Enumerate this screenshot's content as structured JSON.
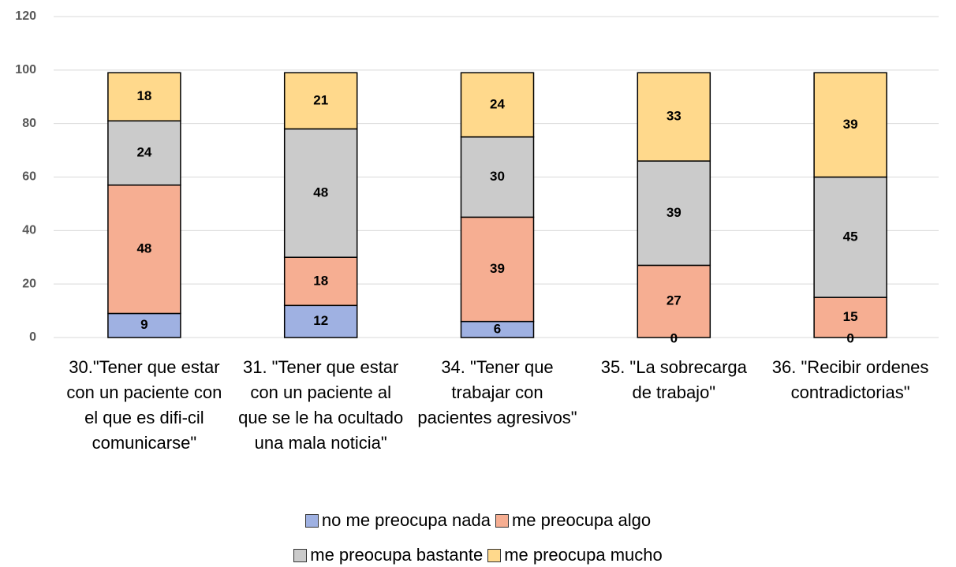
{
  "chart_data": {
    "type": "stacked_bar",
    "categories": [
      "30.\"Tener que estar con un paciente con el que es difi-cil comunicarse\"",
      "31. \"Tener que estar con un paciente al que se le ha ocultado una mala noticia\"",
      "34.  \"Tener que trabajar con pacientes agresivos\"",
      "35.  \"La sobrecarga de trabajo\"",
      "36.  \"Recibir ordenes contradictorias\""
    ],
    "series": [
      {
        "name": "no me preocupa nada",
        "color": "#9fb1e2",
        "values": [
          9,
          12,
          6,
          0,
          0
        ]
      },
      {
        "name": "me preocupa algo",
        "color": "#f6ae92",
        "values": [
          48,
          18,
          39,
          27,
          15
        ]
      },
      {
        "name": "me preocupa bastante",
        "color": "#cbcbcb",
        "values": [
          24,
          48,
          30,
          39,
          45
        ]
      },
      {
        "name": "me preocupa mucho",
        "color": "#ffd98c",
        "values": [
          18,
          21,
          24,
          33,
          39
        ]
      }
    ],
    "ylim": [
      0,
      120
    ],
    "yticks": [
      0,
      20,
      40,
      60,
      80,
      100,
      120
    ],
    "grid": true,
    "legend": "bottom"
  }
}
